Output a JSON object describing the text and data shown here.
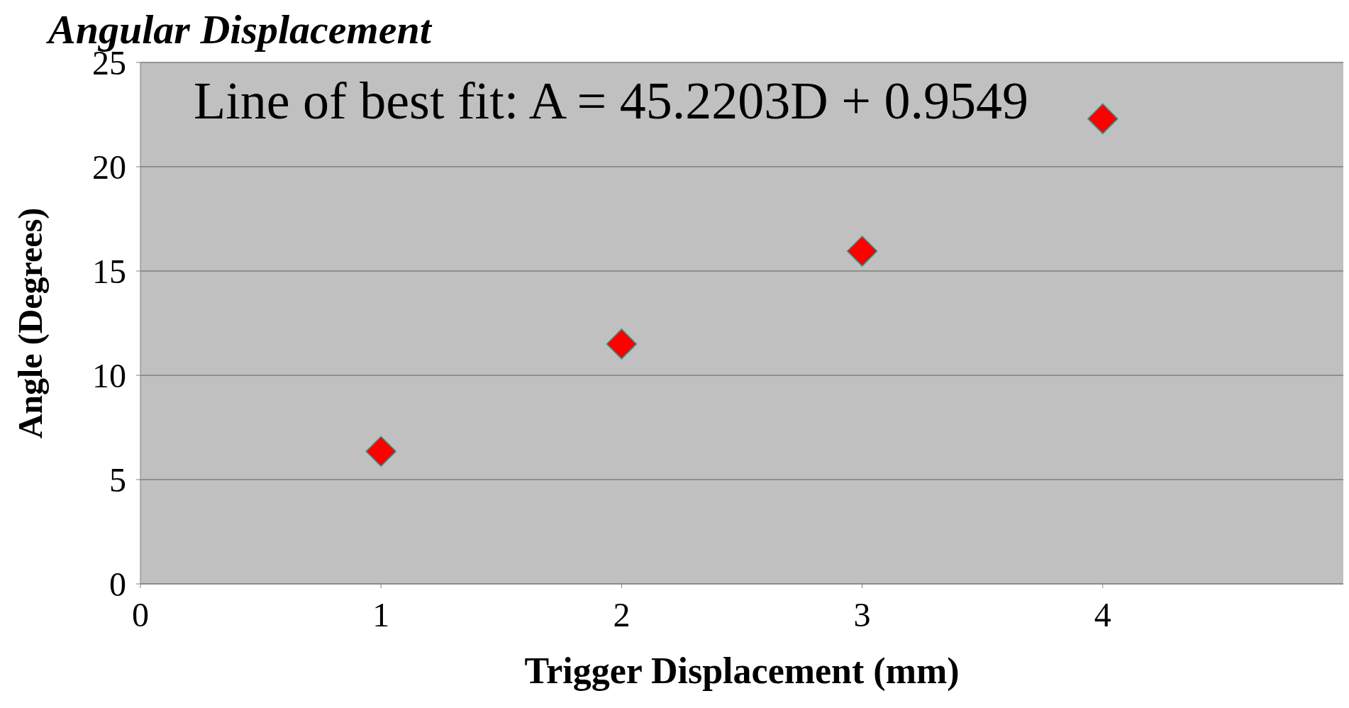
{
  "chart_data": {
    "type": "scatter",
    "title": "Angular Displacement",
    "xlabel": "Trigger Displacement (mm)",
    "ylabel": "Angle (Degrees)",
    "annotations": [
      "Line of best fit: A = 45.2203D + 0.9549"
    ],
    "x": [
      1,
      2,
      3,
      4
    ],
    "series": [
      {
        "color": "#ff0000",
        "values": [
          6.35,
          11.5,
          15.95,
          22.3
        ]
      }
    ],
    "xlim": [
      0,
      5
    ],
    "xticks": [
      0,
      1,
      2,
      3,
      4
    ],
    "ylim": [
      0,
      25
    ],
    "yticks": [
      0,
      5,
      10,
      15,
      20,
      25
    ],
    "grid": "y",
    "marker": "diamond",
    "legend": false
  }
}
